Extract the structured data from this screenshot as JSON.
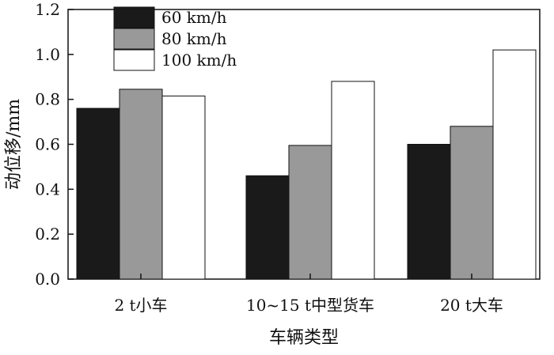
{
  "chart_data": {
    "type": "bar",
    "title": "",
    "xlabel": "车辆类型",
    "ylabel": "动位移/mm",
    "ylim": [
      0,
      1.2
    ],
    "yticks": [
      "0.0",
      "0.2",
      "0.4",
      "0.6",
      "0.8",
      "1.0",
      "1.2"
    ],
    "categories": [
      "2 t小车",
      "10~15 t中型货车",
      "20 t大车"
    ],
    "series": [
      {
        "name": "60 km/h",
        "values": [
          0.76,
          0.46,
          0.6
        ],
        "color": "#1a1a1a"
      },
      {
        "name": "80 km/h",
        "values": [
          0.845,
          0.595,
          0.68
        ],
        "color": "#999999"
      },
      {
        "name": "100 km/h",
        "values": [
          0.815,
          0.88,
          1.02
        ],
        "color": "#ffffff"
      }
    ],
    "legend_position": "top-left",
    "grid": false
  }
}
